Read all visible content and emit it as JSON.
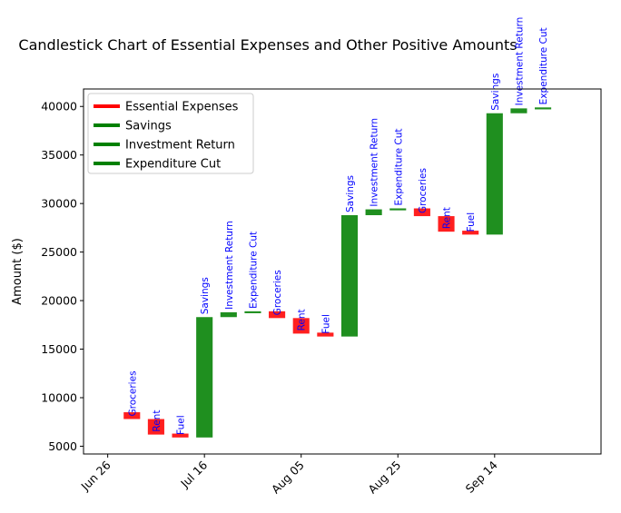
{
  "chart_data": {
    "type": "bar",
    "title": "Candlestick Chart of Essential Expenses and Other Positive Amounts",
    "xlabel": "",
    "ylabel": "Amount ($)",
    "ylim": [
      4200,
      41800
    ],
    "y_ticks": [
      5000,
      10000,
      15000,
      20000,
      25000,
      30000,
      35000,
      40000
    ],
    "xlim": [
      "2023-06-21",
      "2023-10-06"
    ],
    "x_ticks": [
      {
        "date": "2023-06-26",
        "label": "Jun 26"
      },
      {
        "date": "2023-07-16",
        "label": "Jul 16"
      },
      {
        "date": "2023-08-05",
        "label": "Aug 05"
      },
      {
        "date": "2023-08-25",
        "label": "Aug 25"
      },
      {
        "date": "2023-09-14",
        "label": "Sep 14"
      }
    ],
    "grid": false,
    "legend_position": "top-left",
    "legend": [
      {
        "name": "Essential Expenses",
        "color": "#ff0000"
      },
      {
        "name": "Savings",
        "color": "#008000"
      },
      {
        "name": "Investment Return",
        "color": "#008000"
      },
      {
        "name": "Expenditure Cut",
        "color": "#008000"
      }
    ],
    "label_color": "#0000ff",
    "bars": [
      {
        "date": "2023-07-01",
        "label": "Groceries",
        "open": 8500,
        "close": 7800,
        "color": "#ff0000"
      },
      {
        "date": "2023-07-06",
        "label": "Rent",
        "open": 7800,
        "close": 6200,
        "color": "#ff0000"
      },
      {
        "date": "2023-07-11",
        "label": "Fuel",
        "open": 6300,
        "close": 5900,
        "color": "#ff0000"
      },
      {
        "date": "2023-07-16",
        "label": "Savings",
        "open": 5900,
        "close": 18300,
        "color": "#008000"
      },
      {
        "date": "2023-07-21",
        "label": "Investment Return",
        "open": 18300,
        "close": 18800,
        "color": "#008000"
      },
      {
        "date": "2023-07-26",
        "label": "Expenditure Cut",
        "open": 18700,
        "close": 18900,
        "color": "#008000"
      },
      {
        "date": "2023-07-31",
        "label": "Groceries",
        "open": 18900,
        "close": 18200,
        "color": "#ff0000"
      },
      {
        "date": "2023-08-05",
        "label": "Rent",
        "open": 18200,
        "close": 16600,
        "color": "#ff0000"
      },
      {
        "date": "2023-08-10",
        "label": "Fuel",
        "open": 16700,
        "close": 16300,
        "color": "#ff0000"
      },
      {
        "date": "2023-08-15",
        "label": "Savings",
        "open": 16300,
        "close": 28800,
        "color": "#008000"
      },
      {
        "date": "2023-08-20",
        "label": "Investment Return",
        "open": 28800,
        "close": 29400,
        "color": "#008000"
      },
      {
        "date": "2023-08-25",
        "label": "Expenditure Cut",
        "open": 29300,
        "close": 29500,
        "color": "#008000"
      },
      {
        "date": "2023-08-30",
        "label": "Groceries",
        "open": 29500,
        "close": 28700,
        "color": "#ff0000"
      },
      {
        "date": "2023-09-04",
        "label": "Rent",
        "open": 28700,
        "close": 27100,
        "color": "#ff0000"
      },
      {
        "date": "2023-09-09",
        "label": "Fuel",
        "open": 27200,
        "close": 26800,
        "color": "#ff0000"
      },
      {
        "date": "2023-09-14",
        "label": "Savings",
        "open": 26800,
        "close": 39300,
        "color": "#008000"
      },
      {
        "date": "2023-09-19",
        "label": "Investment Return",
        "open": 39300,
        "close": 39800,
        "color": "#008000"
      },
      {
        "date": "2023-09-24",
        "label": "Expenditure Cut",
        "open": 39700,
        "close": 39900,
        "color": "#008000"
      }
    ]
  }
}
